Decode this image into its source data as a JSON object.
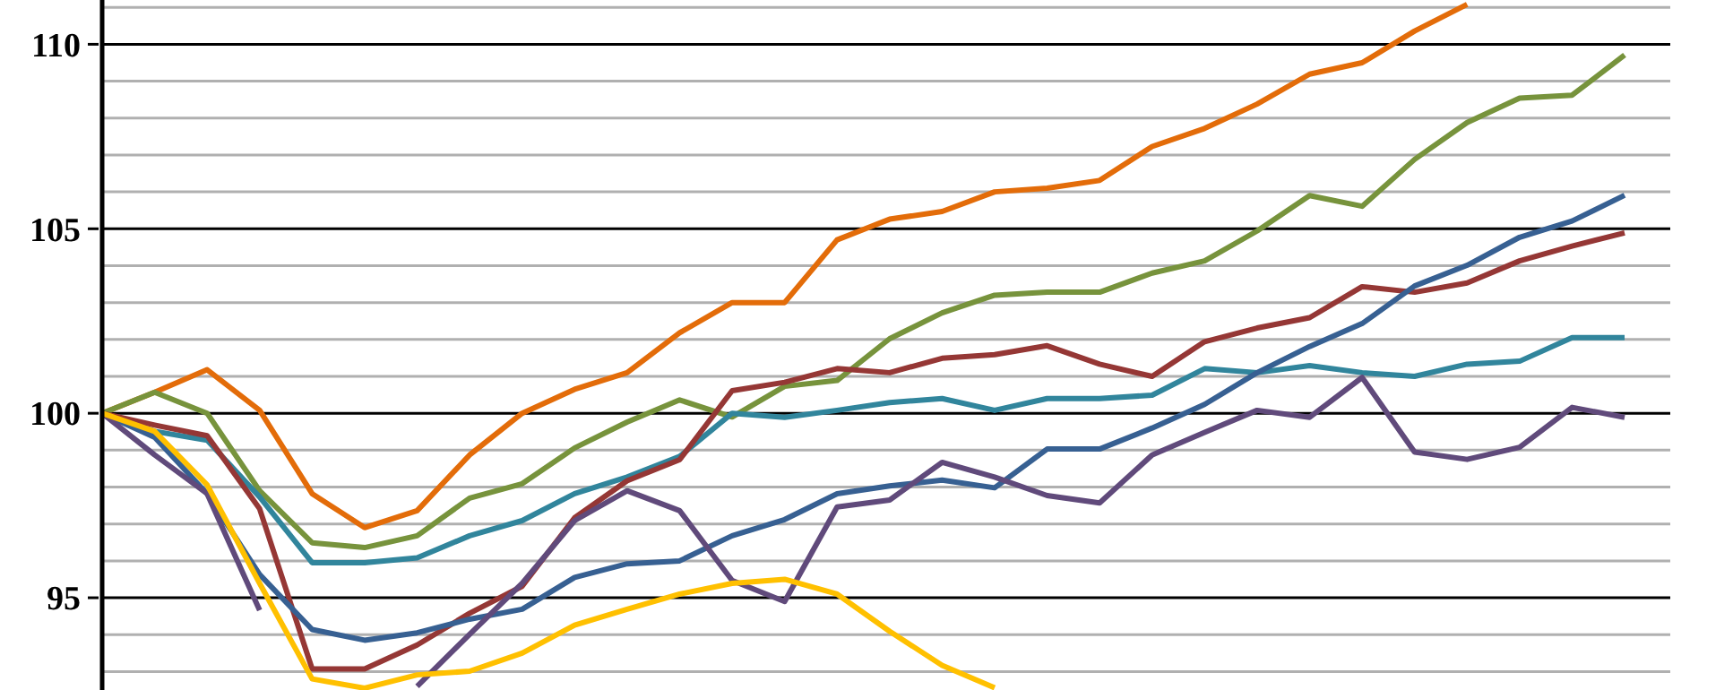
{
  "chart_data": {
    "type": "line",
    "categories": [
      null,
      null,
      null,
      null,
      null,
      null,
      null,
      null,
      null,
      null,
      null,
      null,
      null,
      null,
      null,
      null,
      null,
      null,
      null,
      null,
      null,
      null,
      null,
      null,
      null,
      null,
      null,
      null,
      null,
      null
    ],
    "series": [
      {
        "color": "#e36c09",
        "values": [
          100,
          100.57,
          101.18,
          100.08,
          97.82,
          96.9,
          97.36,
          98.87,
          100,
          100.65,
          101.1,
          102.18,
          103,
          103,
          104.7,
          105.26,
          105.47,
          106,
          106.1,
          106.31,
          107.23,
          107.72,
          108.38,
          109.19,
          109.5,
          110.36,
          111.08,
          null,
          null,
          null
        ]
      },
      {
        "color": "#77933c",
        "values": [
          100,
          100.57,
          100,
          97.9,
          96.49,
          96.36,
          96.68,
          97.7,
          98.09,
          99.06,
          99.76,
          100.36,
          99.9,
          100.73,
          100.89,
          102.02,
          102.72,
          103.2,
          103.28,
          103.28,
          103.8,
          104.13,
          104.94,
          105.9,
          105.61,
          106.88,
          107.88,
          108.54,
          108.62,
          109.71
        ]
      },
      {
        "color": "#31859c",
        "values": [
          100,
          99.51,
          99.27,
          97.73,
          95.95,
          95.95,
          96.08,
          96.68,
          97.09,
          97.82,
          98.27,
          98.83,
          100,
          99.89,
          100.08,
          100.29,
          100.4,
          100.08,
          100.4,
          100.4,
          100.49,
          101.21,
          101.1,
          101.29,
          101.1,
          101,
          101.33,
          101.41,
          102.05,
          102.05
        ]
      },
      {
        "color": "#953735",
        "values": [
          100,
          99.68,
          99.39,
          97.41,
          93.07,
          93.07,
          93.72,
          94.58,
          95.31,
          97.17,
          98.17,
          98.74,
          100.61,
          100.84,
          101.21,
          101.1,
          101.49,
          101.59,
          101.83,
          101.33,
          101,
          101.94,
          102.31,
          102.59,
          103.43,
          103.28,
          103.53,
          104.13,
          104.53,
          104.89
        ]
      },
      {
        "color": "#376092",
        "values": [
          100,
          99.35,
          97.82,
          95.63,
          94.14,
          93.85,
          94.05,
          94.42,
          94.69,
          95.55,
          95.92,
          96,
          96.68,
          97.12,
          97.82,
          98.03,
          98.19,
          97.98,
          99.03,
          99.03,
          99.6,
          100.24,
          101.1,
          101.81,
          102.43,
          103.45,
          104.01,
          104.77,
          105.21,
          105.91
        ]
      },
      {
        "color": "#604a7b",
        "values": [
          100,
          98.87,
          97.82,
          94.66,
          null,
          null,
          92.6,
          94.01,
          95.39,
          97.09,
          97.9,
          97.36,
          95.47,
          94.9,
          97.46,
          97.65,
          98.67,
          98.27,
          97.77,
          97.57,
          98.87,
          99.48,
          100.08,
          99.89,
          100.97,
          98.95,
          98.75,
          99.08,
          100.16,
          99.89
        ]
      },
      {
        "color": "#ffc000",
        "values": [
          100,
          99.51,
          98.06,
          95.39,
          92.8,
          92.55,
          92.91,
          93.01,
          93.5,
          94.26,
          94.69,
          95.1,
          95.39,
          95.5,
          95.1,
          94.09,
          93.17,
          92.56,
          null,
          null,
          null,
          null,
          null,
          null,
          null,
          null,
          null,
          null,
          null,
          null
        ]
      }
    ],
    "ylim": [
      92.5,
      111.2
    ],
    "yticks": [
      {
        "value": 93,
        "label": null
      },
      {
        "value": 94,
        "label": null
      },
      95,
      {
        "value": 96,
        "label": null
      },
      {
        "value": 97,
        "label": null
      },
      {
        "value": 98,
        "label": null
      },
      {
        "value": 99,
        "label": null
      },
      100,
      {
        "value": 101,
        "label": null
      },
      {
        "value": 102,
        "label": null
      },
      {
        "value": 103,
        "label": null
      },
      {
        "value": 104,
        "label": null
      },
      105,
      {
        "value": 106,
        "label": null
      },
      {
        "value": 107,
        "label": null
      },
      {
        "value": 108,
        "label": null
      },
      {
        "value": 109,
        "label": null
      },
      110,
      {
        "value": 111,
        "label": null
      }
    ],
    "grid": true,
    "marker": "none",
    "line_style": "solid",
    "tick_labels": "y"
  }
}
